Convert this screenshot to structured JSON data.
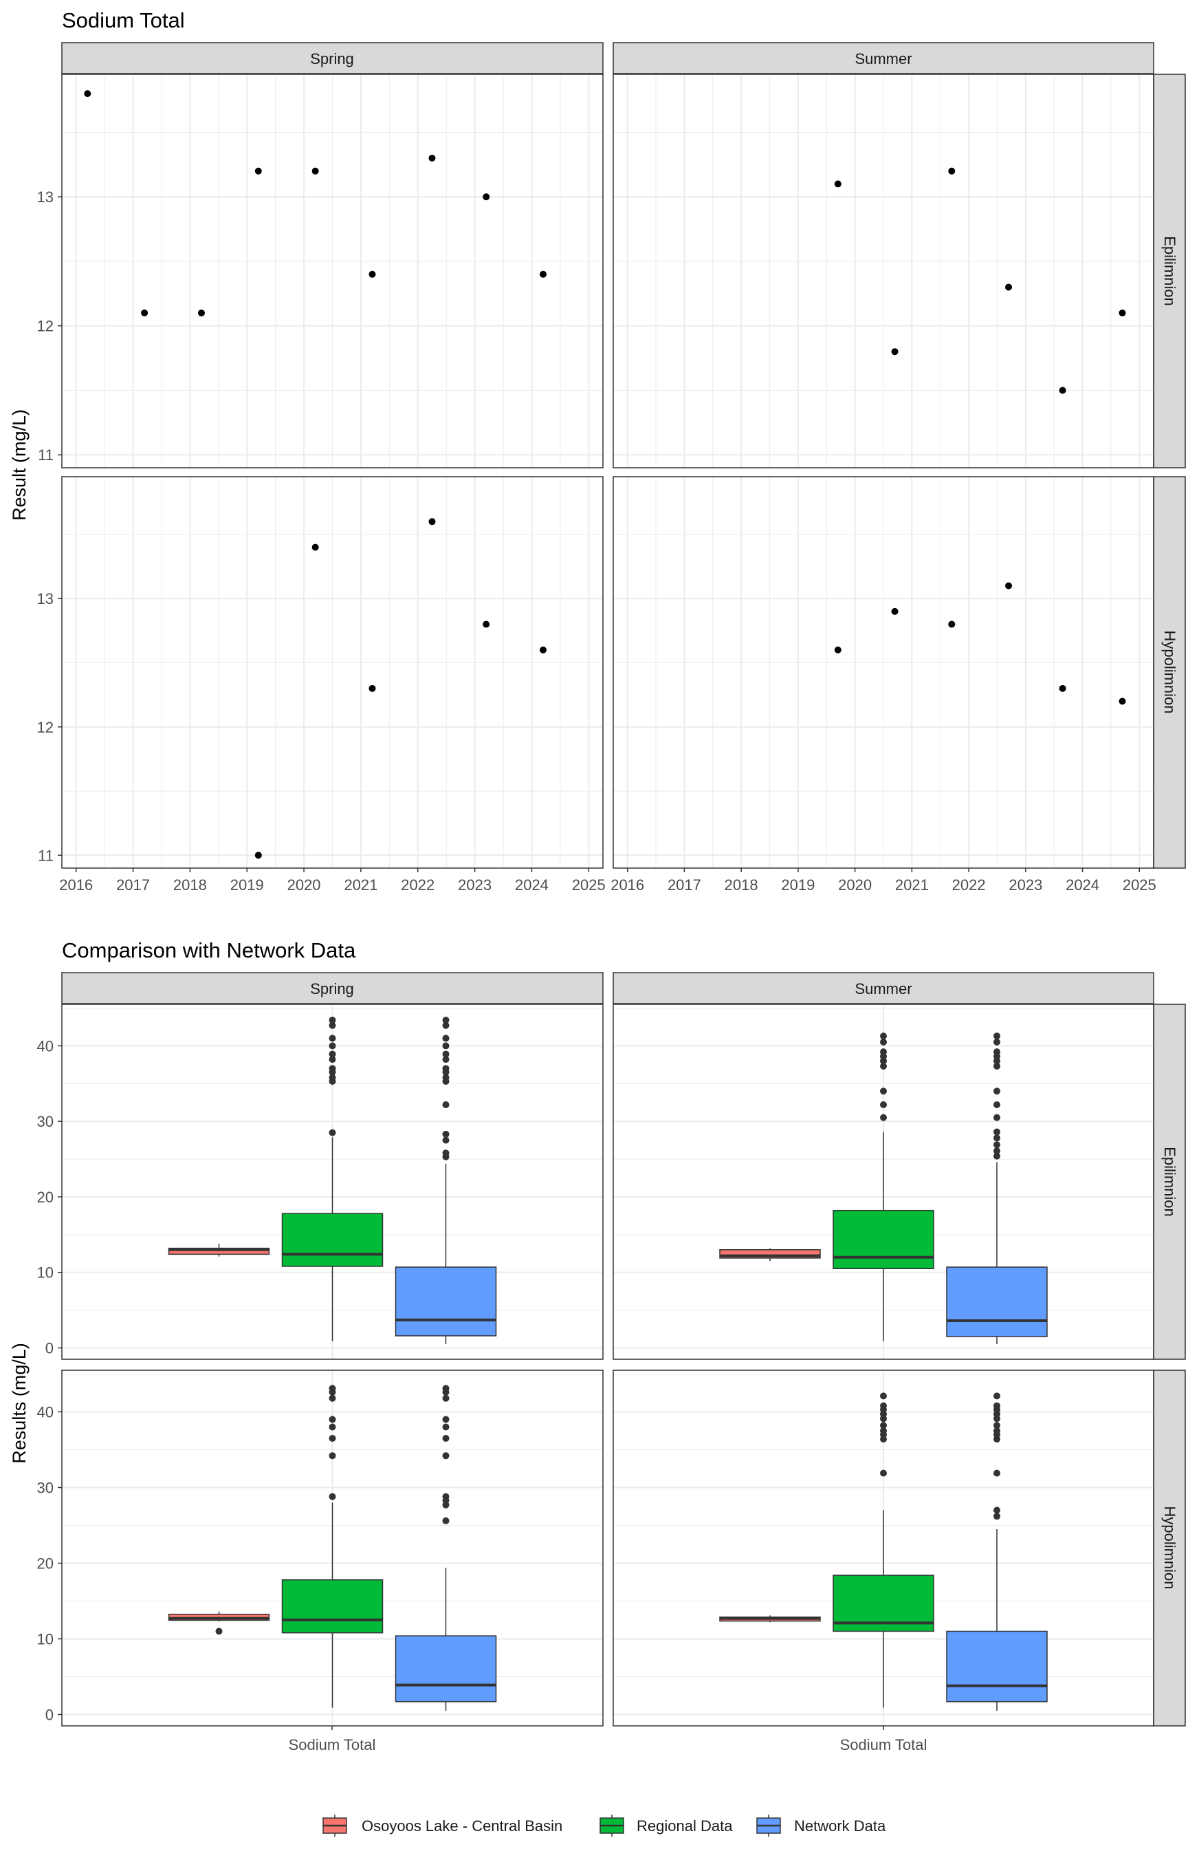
{
  "colors": {
    "osoyoos": "#F8766D",
    "regional": "#00BA38",
    "network": "#619CFF",
    "strip_bg": "#D9D9D9",
    "grid": "#EBEBEB",
    "points": "#000000",
    "outliers": "#333333"
  },
  "chart_data": [
    {
      "type": "scatter",
      "title": "Sodium Total",
      "xlabel": "",
      "ylabel": "Result (mg/L)",
      "facet_columns": [
        "Spring",
        "Summer"
      ],
      "facet_rows": [
        "Epilimnion",
        "Hypolimnion"
      ],
      "xlim": [
        2015.75,
        2025.25
      ],
      "x_ticks": [
        2016,
        2017,
        2018,
        2019,
        2020,
        2021,
        2022,
        2023,
        2024,
        2025
      ],
      "ylim": [
        10.9,
        13.95
      ],
      "y_ticks": [
        11,
        12,
        13
      ],
      "grid": true,
      "panels": [
        {
          "row": "Epilimnion",
          "column": "Spring",
          "points": [
            [
              2016.2,
              13.8
            ],
            [
              2017.2,
              12.1
            ],
            [
              2018.2,
              12.1
            ],
            [
              2019.2,
              13.2
            ],
            [
              2020.2,
              13.2
            ],
            [
              2021.2,
              12.4
            ],
            [
              2022.25,
              13.3
            ],
            [
              2023.2,
              13.0
            ],
            [
              2024.2,
              12.4
            ]
          ]
        },
        {
          "row": "Epilimnion",
          "column": "Summer",
          "points": [
            [
              2019.7,
              13.1
            ],
            [
              2020.7,
              11.8
            ],
            [
              2021.7,
              13.2
            ],
            [
              2022.7,
              12.3
            ],
            [
              2023.65,
              11.5
            ],
            [
              2024.7,
              12.1
            ]
          ]
        },
        {
          "row": "Hypolimnion",
          "column": "Spring",
          "points": [
            [
              2019.2,
              11.0
            ],
            [
              2020.2,
              13.4
            ],
            [
              2021.2,
              12.3
            ],
            [
              2022.25,
              13.6
            ],
            [
              2023.2,
              12.8
            ],
            [
              2024.2,
              12.6
            ]
          ]
        },
        {
          "row": "Hypolimnion",
          "column": "Summer",
          "points": [
            [
              2019.7,
              12.6
            ],
            [
              2020.7,
              12.9
            ],
            [
              2021.7,
              12.8
            ],
            [
              2022.7,
              13.1
            ],
            [
              2023.65,
              12.3
            ],
            [
              2024.7,
              12.2
            ]
          ]
        }
      ]
    },
    {
      "type": "boxplot",
      "title": "Comparison with Network Data",
      "xlabel": "",
      "ylabel": "Results (mg/L)",
      "categories": [
        "Sodium Total"
      ],
      "facet_columns": [
        "Spring",
        "Summer"
      ],
      "facet_rows": [
        "Epilimnion",
        "Hypolimnion"
      ],
      "ylim": [
        -1.5,
        45.5
      ],
      "y_ticks": [
        0,
        10,
        20,
        30,
        40
      ],
      "grid": true,
      "legend": {
        "position": "bottom",
        "entries": [
          "Osoyoos Lake - Central Basin",
          "Regional Data",
          "Network Data"
        ]
      },
      "panels": [
        {
          "row": "Epilimnion",
          "column": "Spring",
          "boxes": [
            {
              "series": "Osoyoos Lake - Central Basin",
              "min": 12.1,
              "q1": 12.4,
              "median": 13.0,
              "q3": 13.2,
              "max": 13.8,
              "outliers": []
            },
            {
              "series": "Regional Data",
              "min": 0.9,
              "q1": 10.8,
              "median": 12.4,
              "q3": 17.8,
              "max": 27.9,
              "outliers": [
                28.5,
                35.3,
                35.8,
                36.5,
                37.0,
                38.2,
                38.9,
                40.0,
                41.0,
                42.7,
                43.4
              ]
            },
            {
              "series": "Network Data",
              "min": 0.5,
              "q1": 1.6,
              "median": 3.7,
              "q3": 10.7,
              "max": 24.4,
              "outliers": [
                25.3,
                25.8,
                27.5,
                28.3,
                32.2,
                35.3,
                35.8,
                36.5,
                37.0,
                38.2,
                38.9,
                40.0,
                41.0,
                42.7,
                43.4
              ]
            }
          ]
        },
        {
          "row": "Epilimnion",
          "column": "Summer",
          "boxes": [
            {
              "series": "Osoyoos Lake - Central Basin",
              "min": 11.5,
              "q1": 11.9,
              "median": 12.2,
              "q3": 13.0,
              "max": 13.2,
              "outliers": []
            },
            {
              "series": "Regional Data",
              "min": 0.9,
              "q1": 10.5,
              "median": 12.0,
              "q3": 18.2,
              "max": 28.6,
              "outliers": [
                30.5,
                32.2,
                34.0,
                37.3,
                38.0,
                38.6,
                39.2,
                40.5,
                41.3
              ]
            },
            {
              "series": "Network Data",
              "min": 0.5,
              "q1": 1.5,
              "median": 3.6,
              "q3": 10.7,
              "max": 24.6,
              "outliers": [
                25.4,
                26.1,
                26.9,
                27.8,
                28.6,
                30.5,
                32.2,
                34.0,
                37.3,
                38.0,
                38.6,
                39.2,
                40.5,
                41.3
              ]
            }
          ]
        },
        {
          "row": "Hypolimnion",
          "column": "Spring",
          "boxes": [
            {
              "series": "Osoyoos Lake - Central Basin",
              "min": 12.3,
              "q1": 12.45,
              "median": 12.7,
              "q3": 13.25,
              "max": 13.6,
              "outliers": [
                11.0
              ]
            },
            {
              "series": "Regional Data",
              "min": 0.9,
              "q1": 10.8,
              "median": 12.5,
              "q3": 17.8,
              "max": 28.0,
              "outliers": [
                28.8,
                34.2,
                36.5,
                38.0,
                39.0,
                41.8,
                42.6,
                43.1
              ]
            },
            {
              "series": "Network Data",
              "min": 0.5,
              "q1": 1.7,
              "median": 3.9,
              "q3": 10.4,
              "max": 19.4,
              "outliers": [
                25.6,
                27.7,
                28.3,
                28.8,
                34.2,
                36.5,
                38.0,
                39.0,
                41.8,
                42.6,
                43.1
              ]
            }
          ]
        },
        {
          "row": "Hypolimnion",
          "column": "Summer",
          "boxes": [
            {
              "series": "Osoyoos Lake - Central Basin",
              "min": 12.2,
              "q1": 12.35,
              "median": 12.7,
              "q3": 12.875,
              "max": 13.1,
              "outliers": []
            },
            {
              "series": "Regional Data",
              "min": 0.9,
              "q1": 11.0,
              "median": 12.1,
              "q3": 18.4,
              "max": 27.0,
              "outliers": [
                31.9,
                36.4,
                37.0,
                37.5,
                38.2,
                39.1,
                39.7,
                40.3,
                40.8,
                42.1
              ]
            },
            {
              "series": "Network Data",
              "min": 0.5,
              "q1": 1.7,
              "median": 3.8,
              "q3": 11.0,
              "max": 24.5,
              "outliers": [
                26.2,
                27.0,
                31.9,
                36.4,
                37.0,
                37.5,
                38.2,
                39.1,
                39.7,
                40.3,
                40.8,
                42.1
              ]
            }
          ]
        }
      ]
    }
  ]
}
